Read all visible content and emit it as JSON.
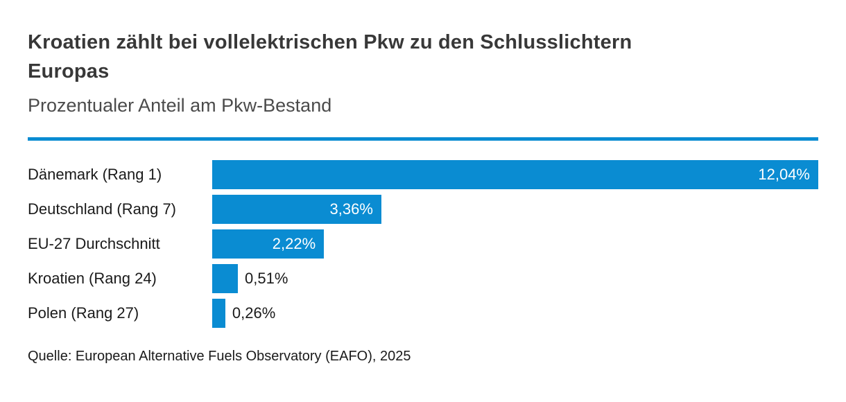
{
  "header": {
    "title": "Kroatien zählt bei vollelektrischen Pkw zu den Schlusslichtern Europas",
    "title_line1": "Kroatien zählt bei vollelektrischen Pkw zu den Schlusslichtern",
    "title_line2": "Europas",
    "subtitle": "Prozentualer Anteil am Pkw-Bestand"
  },
  "chart_data": {
    "type": "bar",
    "orientation": "horizontal",
    "title": "Kroatien zählt bei vollelektrischen Pkw zu den Schlusslichtern Europas",
    "subtitle": "Prozentualer Anteil am Pkw-Bestand",
    "categories": [
      "Dänemark (Rang 1)",
      "Deutschland (Rang 7)",
      "EU-27 Durchschnitt",
      "Kroatien (Rang 24)",
      "Polen (Rang 27)"
    ],
    "values": [
      12.04,
      3.36,
      2.22,
      0.51,
      0.26
    ],
    "value_labels": [
      "12,04%",
      "3,36%",
      "2,22%",
      "0,51%",
      "0,26%"
    ],
    "xlabel": "",
    "ylabel": "",
    "xlim": [
      0,
      12.04
    ],
    "grid": false,
    "legend": false,
    "bar_color": "#0a8cd2"
  },
  "source": {
    "text": "Quelle: European Alternative Fuels Observatory (EAFO), 2025"
  },
  "colors": {
    "accent": "#0a8cd2",
    "title-color": "#383838",
    "subtitle-color": "#4b4b4b",
    "label-color": "#1a1a1a",
    "value-inside-color": "#ffffff"
  }
}
